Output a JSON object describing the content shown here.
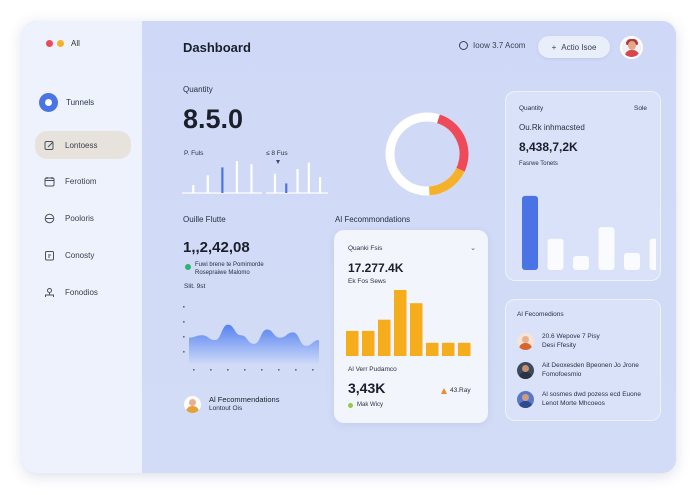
{
  "window": {
    "dots_label": "All"
  },
  "sidebar": {
    "user_label": "Tunnels",
    "items": [
      {
        "label": "Lontoess",
        "icon": "edit-icon"
      },
      {
        "label": "Ferotiom",
        "icon": "calendar-icon"
      },
      {
        "label": "Pooloris",
        "icon": "clock-icon"
      },
      {
        "label": "Conosty",
        "icon": "clipboard-icon"
      },
      {
        "label": "Fonodios",
        "icon": "people-icon"
      }
    ]
  },
  "header": {
    "title": "Dashboard",
    "time_text": "Ioow 3.7 Acom",
    "add_button": "Actio Isoe"
  },
  "quantity": {
    "label": "Quantity",
    "value": "8.5.0",
    "mini_label_1": "P. Fuls",
    "mini_label_2": "≤ 8 Fus",
    "mini_bars_1": [
      0.25,
      0.55,
      0.8,
      1.0,
      0.9
    ],
    "mini_bars_2": [
      0.6,
      0.3,
      0.75,
      0.95,
      0.5
    ]
  },
  "donut": {
    "red_fraction": 0.27,
    "yellow_fraction": 0.17
  },
  "revenue": {
    "label": "Ouille Flutte",
    "value": "1,,2,42,08",
    "note_1": "Fuwi brene te Pomimorde",
    "note_2": "Rosepraiwe Malomo",
    "sub": "Slit. 9st",
    "area_values": [
      0.55,
      0.6,
      0.5,
      0.82,
      0.6,
      0.42,
      0.72,
      0.55,
      0.66,
      0.38,
      0.5
    ]
  },
  "ai_rec_footer": {
    "title": "Al Fecommendations",
    "subtitle": "Lontout Ois"
  },
  "ai_panel": {
    "heading": "Al Fecommondations",
    "card_title": "Quanki Fsis",
    "value": "17.277.4K",
    "sub": "Ek Fos Sews",
    "bars": [
      0.38,
      0.38,
      0.55,
      1.0,
      0.8,
      0.2,
      0.2,
      0.2
    ],
    "bottom_label": "Al Verr Pudamco",
    "bottom_value": "3,43K",
    "change": "43.Ray",
    "legend": "Mak Wicy"
  },
  "right_top": {
    "label": "Quantity",
    "label_right": "Sole",
    "sub": "Ou.Rk inhmacsted",
    "value": "8,438,7,2K",
    "caption": "Fasrwe Tonets",
    "bars": [
      0.95,
      0.4,
      0.18,
      0.55,
      0.22,
      0.4
    ]
  },
  "right_bottom": {
    "heading": "Al Fecomedions",
    "people": [
      {
        "line1": "20.6 Wepove 7 Pisy",
        "line2": "Desi Ffesity"
      },
      {
        "line1": "Ait Deoxesden Bpeonen Jo Jrone",
        "line2": "Fomofoesmio"
      },
      {
        "line1": "Al sosmes dwd pozess ecd Euone",
        "line2": "Lenot Morte Mhcoeos"
      }
    ]
  },
  "colors": {
    "accent_blue": "#4a73e6",
    "bar_yellow": "#f5ad1b",
    "donut_red": "#ef4a5a",
    "donut_yellow": "#f6b12b"
  }
}
